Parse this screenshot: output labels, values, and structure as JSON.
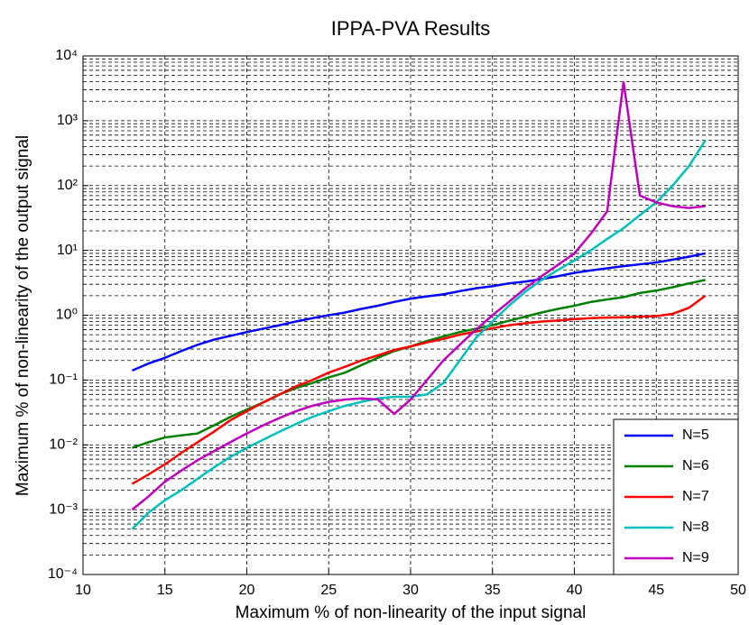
{
  "chart_data": {
    "type": "line",
    "title": "IPPA-PVA Results",
    "xlabel": "Maximum % of non-linearity of the input signal",
    "ylabel": "Maximum % of non-linearity of the output signal",
    "x": [
      13,
      14,
      15,
      16,
      17,
      18,
      19,
      20,
      21,
      22,
      23,
      24,
      25,
      26,
      27,
      28,
      29,
      30,
      31,
      32,
      33,
      34,
      35,
      36,
      37,
      38,
      39,
      40,
      41,
      42,
      43,
      44,
      45,
      46,
      47,
      48
    ],
    "series": [
      {
        "name": "N=5",
        "color": "#0000ff",
        "values": [
          0.14,
          0.18,
          0.22,
          0.28,
          0.35,
          0.42,
          0.48,
          0.55,
          0.62,
          0.7,
          0.8,
          0.9,
          1.0,
          1.1,
          1.25,
          1.4,
          1.6,
          1.8,
          1.95,
          2.1,
          2.35,
          2.6,
          2.8,
          3.1,
          3.3,
          3.6,
          4.0,
          4.5,
          4.9,
          5.3,
          5.7,
          6.1,
          6.5,
          7.2,
          8.0,
          9.0
        ]
      },
      {
        "name": "N=6",
        "color": "#008000",
        "values": [
          0.009,
          0.011,
          0.013,
          0.014,
          0.015,
          0.02,
          0.027,
          0.035,
          0.045,
          0.06,
          0.075,
          0.09,
          0.11,
          0.13,
          0.17,
          0.22,
          0.28,
          0.33,
          0.4,
          0.47,
          0.55,
          0.62,
          0.7,
          0.82,
          0.95,
          1.1,
          1.25,
          1.4,
          1.6,
          1.75,
          1.9,
          2.2,
          2.4,
          2.7,
          3.1,
          3.5
        ]
      },
      {
        "name": "N=7",
        "color": "#ff0000",
        "values": [
          0.0025,
          0.0035,
          0.005,
          0.0075,
          0.011,
          0.016,
          0.024,
          0.033,
          0.045,
          0.06,
          0.08,
          0.1,
          0.13,
          0.16,
          0.2,
          0.24,
          0.29,
          0.33,
          0.38,
          0.43,
          0.5,
          0.56,
          0.63,
          0.7,
          0.75,
          0.8,
          0.83,
          0.87,
          0.9,
          0.92,
          0.93,
          0.95,
          0.97,
          1.05,
          1.3,
          2.0
        ]
      },
      {
        "name": "N=8",
        "color": "#00bfbf",
        "values": [
          0.0005,
          0.0009,
          0.0014,
          0.002,
          0.003,
          0.0045,
          0.0065,
          0.009,
          0.012,
          0.016,
          0.021,
          0.027,
          0.033,
          0.04,
          0.046,
          0.052,
          0.055,
          0.055,
          0.06,
          0.09,
          0.2,
          0.45,
          0.8,
          1.4,
          2.3,
          3.5,
          5,
          7,
          10,
          15,
          22,
          35,
          55,
          100,
          200,
          500
        ]
      },
      {
        "name": "N=9",
        "color": "#bf00bf",
        "values": [
          0.001,
          0.0016,
          0.0027,
          0.004,
          0.0058,
          0.008,
          0.011,
          0.015,
          0.02,
          0.026,
          0.033,
          0.04,
          0.046,
          0.05,
          0.052,
          0.05,
          0.03,
          0.05,
          0.1,
          0.2,
          0.35,
          0.6,
          1.0,
          1.6,
          2.6,
          4,
          6,
          9,
          18,
          40,
          4000,
          70,
          55,
          48,
          45,
          48
        ]
      }
    ],
    "xlim": [
      10,
      50
    ],
    "xticks": [
      10,
      15,
      20,
      25,
      30,
      35,
      40,
      45,
      50
    ],
    "ylim": [
      0.0001,
      10000
    ],
    "ylog": true,
    "yticks": [
      {
        "value": 0.0001,
        "label": "10⁻⁴"
      },
      {
        "value": 0.001,
        "label": "10⁻³"
      },
      {
        "value": 0.01,
        "label": "10⁻²"
      },
      {
        "value": 0.1,
        "label": "10⁻¹"
      },
      {
        "value": 1,
        "label": "10⁰"
      },
      {
        "value": 10,
        "label": "10¹"
      },
      {
        "value": 100,
        "label": "10²"
      },
      {
        "value": 1000,
        "label": "10³"
      },
      {
        "value": 10000,
        "label": "10⁴"
      }
    ],
    "grid": true,
    "minor_grid": true,
    "legend": "lower right"
  }
}
